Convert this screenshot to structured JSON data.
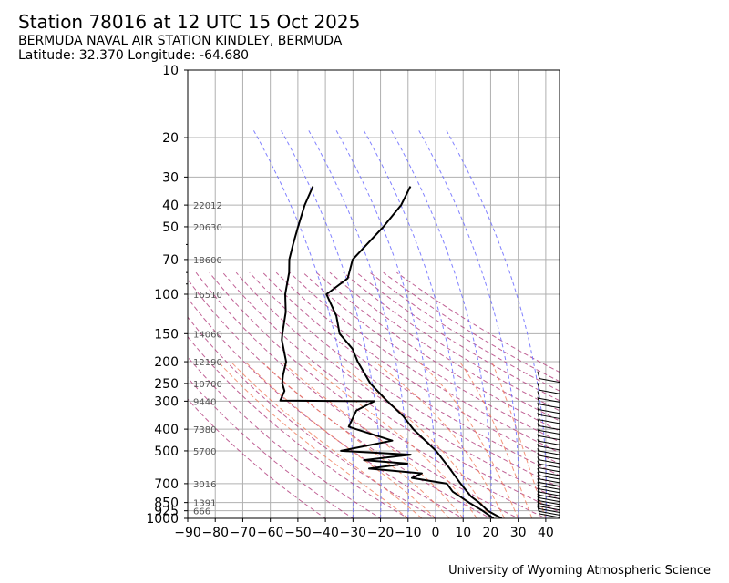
{
  "header": {
    "title": "Station 78016 at 12 UTC 15 Oct 2025",
    "station_name": "BERMUDA NAVAL AIR STATION KINDLEY, BERMUDA",
    "location": "Latitude: 32.370 Longitude: -64.680"
  },
  "footer": {
    "credit": "University of Wyoming Atmospheric Science"
  },
  "colors": {
    "profile": "#000000",
    "grid": "#b0b0b0",
    "mixing_ratio": "#6b6bff",
    "dry_adiabat": "#b03a7a",
    "moist_adiabat": "#f07a5a"
  },
  "chart_data": {
    "type": "skew-t log-p",
    "y_axis": {
      "scale": "log",
      "inverted": true,
      "range": [
        1000,
        10
      ],
      "ticks": [
        "10",
        "20",
        "30",
        "40",
        "50",
        "70",
        "100",
        "150",
        "200",
        "250",
        "300",
        "400",
        "500",
        "700",
        "850",
        "925",
        "1000"
      ]
    },
    "x_axis": {
      "range": [
        -90,
        45
      ],
      "ticks": [
        "−90",
        "−80",
        "−70",
        "−60",
        "−50",
        "−40",
        "−30",
        "−20",
        "−10",
        "0",
        "10",
        "20",
        "30",
        "40"
      ]
    },
    "grid": true,
    "height_labels": [
      {
        "p": 40,
        "h": "22012"
      },
      {
        "p": 50,
        "h": "20630"
      },
      {
        "p": 70,
        "h": "18600"
      },
      {
        "p": 100,
        "h": "16510"
      },
      {
        "p": 150,
        "h": "14060"
      },
      {
        "p": 200,
        "h": "12190"
      },
      {
        "p": 250,
        "h": "10700"
      },
      {
        "p": 300,
        "h": "9440"
      },
      {
        "p": 400,
        "h": "7380"
      },
      {
        "p": 500,
        "h": "5700"
      },
      {
        "p": 700,
        "h": "3016"
      },
      {
        "p": 850,
        "h": "1391"
      },
      {
        "p": 925,
        "h": "666"
      }
    ],
    "series": [
      {
        "role": "temperature",
        "points": [
          {
            "p": 1000,
            "t": 24
          },
          {
            "p": 925,
            "t": 17.8
          },
          {
            "p": 850,
            "t": 13.3
          },
          {
            "p": 800,
            "t": 9.5
          },
          {
            "p": 700,
            "t": 3.6
          },
          {
            "p": 600,
            "t": -2.7
          },
          {
            "p": 500,
            "t": -10.5
          },
          {
            "p": 400,
            "t": -22.2
          },
          {
            "p": 350,
            "t": -27.9
          },
          {
            "p": 300,
            "t": -36
          },
          {
            "p": 250,
            "t": -45
          },
          {
            "p": 200,
            "t": -53
          },
          {
            "p": 175,
            "t": -57
          },
          {
            "p": 150,
            "t": -64
          },
          {
            "p": 125,
            "t": -68
          },
          {
            "p": 100,
            "t": -75
          },
          {
            "p": 85,
            "t": -69.8
          },
          {
            "p": 70,
            "t": -71
          },
          {
            "p": 50,
            "t": -65
          },
          {
            "p": 40,
            "t": -62
          },
          {
            "p": 33,
            "t": -61.6
          }
        ]
      },
      {
        "role": "dewpoint",
        "points": [
          {
            "p": 1000,
            "t": 21
          },
          {
            "p": 925,
            "t": 15.9
          },
          {
            "p": 850,
            "t": 9.6
          },
          {
            "p": 760,
            "t": 2
          },
          {
            "p": 700,
            "t": -1.4
          },
          {
            "p": 660,
            "t": -15
          },
          {
            "p": 630,
            "t": -12.1
          },
          {
            "p": 600,
            "t": -32
          },
          {
            "p": 570,
            "t": -18.9
          },
          {
            "p": 550,
            "t": -35.2
          },
          {
            "p": 520,
            "t": -19.1
          },
          {
            "p": 500,
            "t": -45
          },
          {
            "p": 450,
            "t": -28
          },
          {
            "p": 400,
            "t": -43
          },
          {
            "p": 390,
            "t": -46
          },
          {
            "p": 330,
            "t": -45.8
          },
          {
            "p": 300,
            "t": -40.7
          },
          {
            "p": 298,
            "t": -75
          },
          {
            "p": 270,
            "t": -75
          },
          {
            "p": 250,
            "t": -77
          },
          {
            "p": 230,
            "t": -78
          },
          {
            "p": 200,
            "t": -79
          },
          {
            "p": 160,
            "t": -84
          },
          {
            "p": 150,
            "t": -84.8
          },
          {
            "p": 120,
            "t": -87
          },
          {
            "p": 100,
            "t": -90
          },
          {
            "p": 80,
            "t": -92
          },
          {
            "p": 70,
            "t": -94
          },
          {
            "p": 60,
            "t": -95
          },
          {
            "p": 50,
            "t": -96
          },
          {
            "p": 40,
            "t": -97
          },
          {
            "p": 33,
            "t": -97
          }
        ]
      }
    ]
  }
}
